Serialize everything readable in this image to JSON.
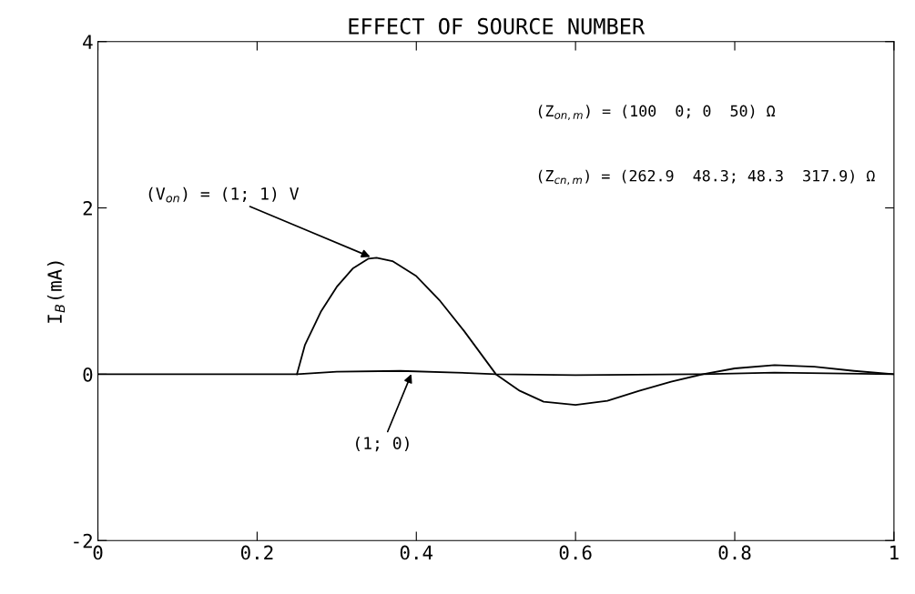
{
  "chart_data": {
    "type": "line",
    "title": "EFFECT OF SOURCE NUMBER",
    "ylabel": "I$_{B}$(mA)",
    "xlim": [
      0,
      1
    ],
    "ylim": [
      -2,
      4
    ],
    "xticks": [
      0,
      0.2,
      0.4,
      0.6,
      0.8,
      1
    ],
    "yticks": [
      -2,
      0,
      2,
      4
    ],
    "grid": false,
    "legend": false,
    "series": [
      {
        "color": "#000000",
        "x": [
          0.25,
          0.26,
          0.28,
          0.3,
          0.32,
          0.34,
          0.35,
          0.37,
          0.4,
          0.43,
          0.46,
          0.5,
          0.53,
          0.56,
          0.6,
          0.64,
          0.68,
          0.72,
          0.76,
          0.8,
          0.85,
          0.9,
          0.95,
          1.0
        ],
        "values": [
          0,
          0.35,
          0.75,
          1.05,
          1.27,
          1.39,
          1.4,
          1.36,
          1.18,
          0.88,
          0.52,
          0.0,
          -0.2,
          -0.33,
          -0.37,
          -0.32,
          -0.2,
          -0.09,
          0.0,
          0.07,
          0.11,
          0.09,
          0.04,
          0
        ]
      },
      {
        "color": "#000000",
        "x": [
          0,
          0.25,
          0.3,
          0.38,
          0.45,
          0.5,
          0.6,
          0.76,
          0.85,
          1.0
        ],
        "values": [
          0,
          0,
          0.03,
          0.04,
          0.02,
          0,
          -0.01,
          0,
          0.02,
          0
        ]
      }
    ],
    "annotations": [
      {
        "text": "(V$_{on}$) = (1; 1) V",
        "x": 0.345,
        "y": 1.4
      },
      {
        "text": "(1; 0)",
        "x": 0.395,
        "y": 0.03
      },
      "(Z$_{on,m}$) = (100  0; 0  50) Ω",
      "(Z$_{cn,m}$) = (262.9  48.3; 48.3  317.9) Ω"
    ]
  }
}
